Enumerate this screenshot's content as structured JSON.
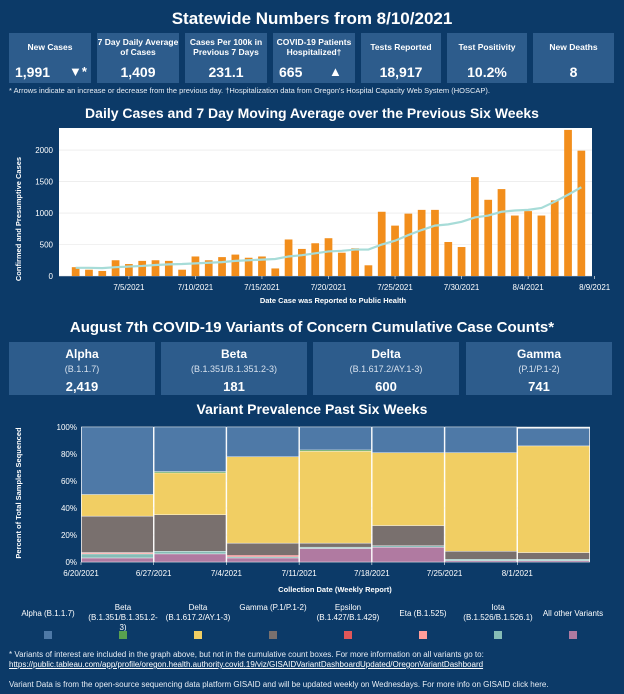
{
  "stats_title": "Statewide Numbers from 8/10/2021",
  "stats": [
    {
      "label": "New Cases",
      "value": "1,991",
      "arrow": "▼*"
    },
    {
      "label": "7 Day Daily Average of Cases",
      "value": "1,409",
      "arrow": ""
    },
    {
      "label": "Cases Per 100k in Previous 7 Days",
      "value": "231.1",
      "arrow": ""
    },
    {
      "label": "COVID-19 Patients Hospitalized†",
      "value": "665",
      "arrow": "▲"
    },
    {
      "label": "Tests Reported",
      "value": "18,917",
      "arrow": ""
    },
    {
      "label": "Test Positivity",
      "value": "10.2%",
      "arrow": ""
    },
    {
      "label": "New Deaths",
      "value": "8",
      "arrow": ""
    }
  ],
  "footnote_1": "* Arrows indicate an increase or decrease from the previous day. †Hospitalization data from Oregon's Hospital Capacity Web System (HOSCAP).",
  "daily_title": "Daily Cases and 7 Day Moving Average over the Previous Six Weeks",
  "variants_title": "August 7th  COVID-19 Variants of Concern Cumulative Case Counts*",
  "variants": [
    {
      "name": "Alpha",
      "lineage": "(B.1.1.7)",
      "count": "2,419"
    },
    {
      "name": "Beta",
      "lineage": "(B.1.351/B.1.351.2-3)",
      "count": "181"
    },
    {
      "name": "Delta",
      "lineage": "(B.1.617.2/AY.1-3)",
      "count": "600"
    },
    {
      "name": "Gamma",
      "lineage": "(P.1/P.1-2)",
      "count": "741"
    }
  ],
  "prevalence_title": "Variant Prevalence Past Six Weeks",
  "legend": [
    {
      "label": "Alpha (B.1.1.7)",
      "color": "#4e79a7"
    },
    {
      "label": "Beta (B.1.351/B.1.351.2-3)",
      "color": "#59a14f"
    },
    {
      "label": "Delta (B.1.617.2/AY.1-3)",
      "color": "#f1ce63"
    },
    {
      "label": "Gamma (P.1/P.1-2)",
      "color": "#79706e"
    },
    {
      "label": "Epsilon (B.1.427/B.1.429)",
      "color": "#e15759"
    },
    {
      "label": "Eta (B.1.525)",
      "color": "#ff9d9a"
    },
    {
      "label": "Iota (B.1.526/B.1.526.1)",
      "color": "#86bcb6"
    },
    {
      "label": "All other Variants",
      "color": "#b07aa1"
    }
  ],
  "footnote_2": "* Variants of interest are included in the graph above, but not in the cumulative count boxes. For more information on all variants go to:",
  "footnote_url": "https://public.tableau.com/app/profile/oregon.health.authority.covid.19/viz/GISAIDVariantDashboardUpdated/OregonVariantDashboard",
  "footnote_3": "Variant Data is from the open-source sequencing data platform GISAID and will be updated weekly on Wednesdays. For more info on GISAID click here.",
  "chart_data": [
    {
      "type": "bar",
      "title": "Daily Cases and 7 Day Moving Average over the Previous Six Weeks",
      "xlabel": "Date Case was Reported to Public Health",
      "ylabel": "Confirmed and Presumptive Cases",
      "ylim": [
        0,
        2350
      ],
      "yticks": [
        0,
        500,
        1000,
        1500,
        2000
      ],
      "bar_color": "#f28e1c",
      "line_color": "#a7dcd8",
      "x_tick_labels": [
        {
          "index": 4,
          "label": "7/5/2021"
        },
        {
          "index": 9,
          "label": "7/10/2021"
        },
        {
          "index": 14,
          "label": "7/15/2021"
        },
        {
          "index": 19,
          "label": "7/20/2021"
        },
        {
          "index": 24,
          "label": "7/25/2021"
        },
        {
          "index": 29,
          "label": "7/30/2021"
        },
        {
          "index": 34,
          "label": "8/4/2021"
        },
        {
          "index": 39,
          "label": "8/9/2021"
        }
      ],
      "series": [
        {
          "name": "Daily cases",
          "values": [
            140,
            100,
            80,
            250,
            190,
            240,
            250,
            240,
            100,
            310,
            250,
            300,
            340,
            290,
            310,
            120,
            580,
            430,
            520,
            600,
            370,
            440,
            170,
            1020,
            800,
            990,
            1050,
            1050,
            540,
            460,
            1570,
            1210,
            1380,
            960,
            1030,
            960,
            1200,
            2320,
            1990
          ]
        },
        {
          "name": "7 Day Moving Average",
          "values": [
            130,
            130,
            125,
            140,
            150,
            160,
            175,
            185,
            190,
            200,
            210,
            220,
            240,
            250,
            260,
            270,
            310,
            330,
            360,
            390,
            400,
            420,
            420,
            500,
            560,
            650,
            730,
            800,
            820,
            860,
            930,
            960,
            1020,
            1040,
            1050,
            1080,
            1180,
            1290,
            1409
          ]
        }
      ]
    },
    {
      "type": "bar",
      "stacked": true,
      "title": "Variant Prevalence Past Six Weeks",
      "xlabel": "Collection Date (Weekly Report)",
      "ylabel": "Percent of Total Samples Sequenced",
      "ylim": [
        0,
        100
      ],
      "yticks": [
        "0%",
        "20%",
        "40%",
        "60%",
        "80%",
        "100%"
      ],
      "categories": [
        "6/20/2021",
        "6/27/2021",
        "7/4/2021",
        "7/11/2021",
        "7/18/2021",
        "7/25/2021",
        "8/1/2021"
      ],
      "series": [
        {
          "name": "All other Variants",
          "values": [
            3,
            6,
            3,
            10,
            11,
            1,
            1
          ]
        },
        {
          "name": "Iota (B.1.526/B.1.526.1)",
          "values": [
            3,
            2,
            1,
            1,
            1,
            1,
            1
          ]
        },
        {
          "name": "Eta (B.1.525)",
          "values": [
            1,
            0,
            0,
            0,
            0,
            0,
            0
          ]
        },
        {
          "name": "Epsilon (B.1.427/B.1.429)",
          "values": [
            0,
            0,
            1,
            0,
            0,
            0,
            0
          ]
        },
        {
          "name": "Gamma (P.1/P.1-2)",
          "values": [
            27,
            27,
            9,
            3,
            15,
            6,
            5
          ]
        },
        {
          "name": "Delta (B.1.617.2/AY.1-3)",
          "values": [
            16,
            31,
            64,
            68,
            54,
            73,
            79
          ]
        },
        {
          "name": "Beta (B.1.351/B.1.351.2-3)",
          "values": [
            0,
            1,
            0,
            1,
            0,
            0,
            0
          ]
        },
        {
          "name": "Alpha (B.1.1.7)",
          "values": [
            50,
            33,
            22,
            17,
            19,
            19,
            13
          ]
        }
      ]
    }
  ]
}
